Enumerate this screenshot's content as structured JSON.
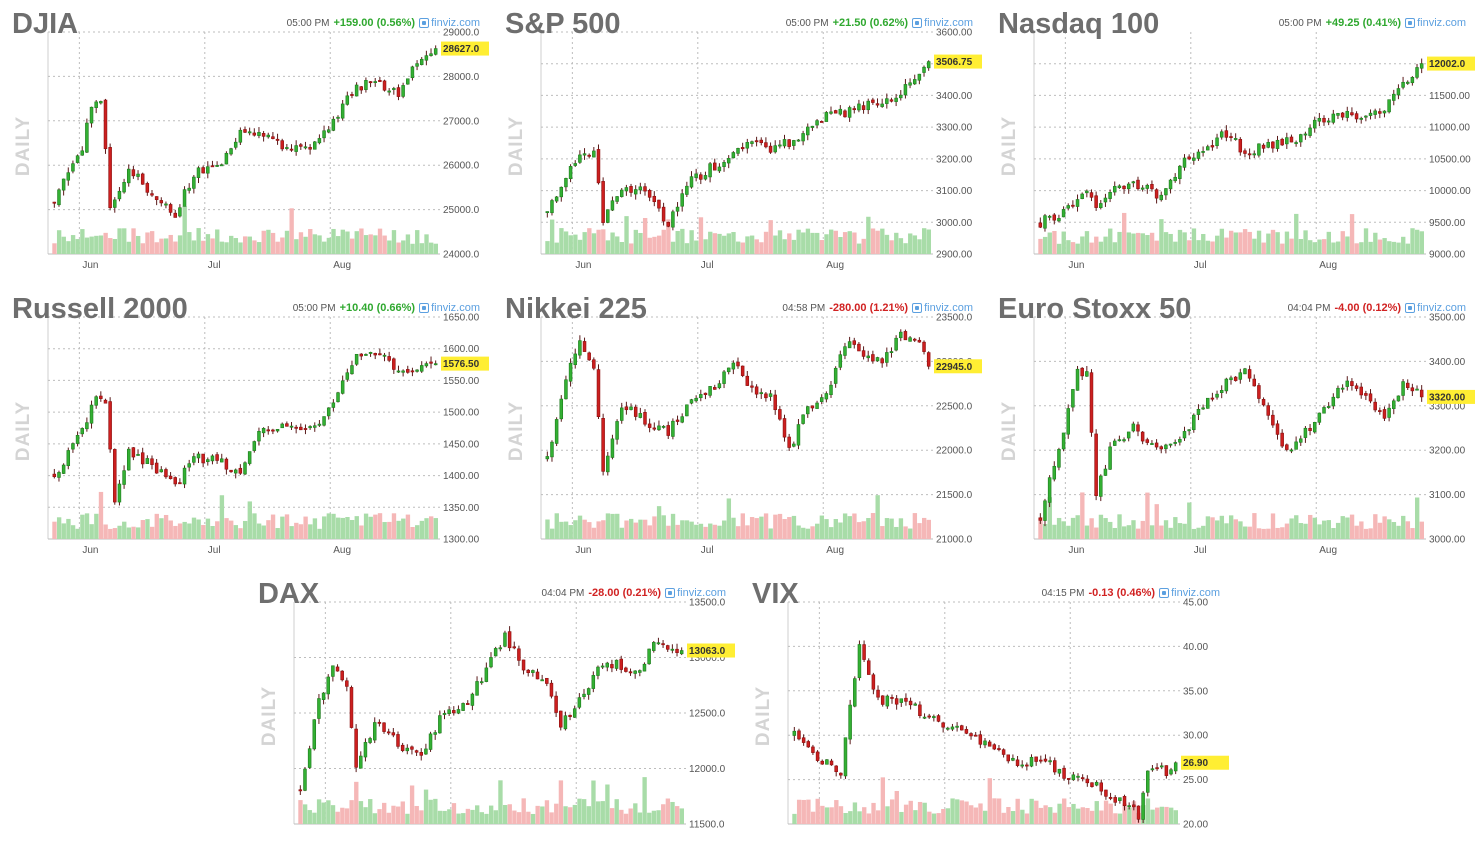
{
  "chart_data": [
    {
      "type": "candlestick",
      "title": "DJIA",
      "time": "05:00 PM",
      "change": "+159.00 (0.56%)",
      "direction": "up",
      "source": "finviz.com",
      "side_label": "DAILY",
      "last_label": "28627.0",
      "last": 28627,
      "ylim": [
        24000,
        29000
      ],
      "yticks": [
        "24000.0",
        "25000.0",
        "26000.0",
        "27000.0",
        "28000.0",
        "29000.0"
      ],
      "month_labels": [
        "Jun",
        "Jul",
        "Aug"
      ],
      "path": [
        [
          0,
          25200
        ],
        [
          6,
          26400
        ],
        [
          8,
          27300
        ],
        [
          10,
          27500
        ],
        [
          12,
          25100
        ],
        [
          16,
          25900
        ],
        [
          22,
          25300
        ],
        [
          26,
          24900
        ],
        [
          30,
          25800
        ],
        [
          36,
          26000
        ],
        [
          40,
          26700
        ],
        [
          44,
          26800
        ],
        [
          48,
          26500
        ],
        [
          55,
          26300
        ],
        [
          60,
          27000
        ],
        [
          65,
          27800
        ],
        [
          70,
          27800
        ],
        [
          74,
          27600
        ],
        [
          78,
          28300
        ],
        [
          82,
          28627
        ]
      ]
    },
    {
      "type": "candlestick",
      "title": "S&P 500",
      "time": "05:00 PM",
      "change": "+21.50 (0.62%)",
      "direction": "up",
      "source": "finviz.com",
      "side_label": "DAILY",
      "last_label": "3506.75",
      "last": 3506.75,
      "ylim": [
        2900,
        3600
      ],
      "yticks": [
        "2900.00",
        "3000.00",
        "3100.00",
        "3200.00",
        "3300.00",
        "3400.00",
        "3500.00",
        "3600.00"
      ],
      "month_labels": [
        "Jun",
        "Jul",
        "Aug"
      ],
      "path": [
        [
          0,
          3030
        ],
        [
          6,
          3200
        ],
        [
          10,
          3230
        ],
        [
          12,
          3000
        ],
        [
          16,
          3110
        ],
        [
          22,
          3090
        ],
        [
          26,
          2990
        ],
        [
          30,
          3120
        ],
        [
          36,
          3180
        ],
        [
          40,
          3220
        ],
        [
          44,
          3260
        ],
        [
          48,
          3220
        ],
        [
          55,
          3280
        ],
        [
          60,
          3340
        ],
        [
          65,
          3350
        ],
        [
          70,
          3380
        ],
        [
          74,
          3390
        ],
        [
          78,
          3440
        ],
        [
          82,
          3506.75
        ]
      ]
    },
    {
      "type": "candlestick",
      "title": "Nasdaq 100",
      "time": "05:00 PM",
      "change": "+49.25 (0.41%)",
      "direction": "up",
      "source": "finviz.com",
      "side_label": "DAILY",
      "last_label": "12002.0",
      "last": 12002,
      "ylim": [
        9000,
        12500
      ],
      "yticks": [
        "9000.00",
        "9500.00",
        "10000.00",
        "10500.00",
        "11000.00",
        "11500.00",
        "12000.00"
      ],
      "month_labels": [
        "Jun",
        "Jul",
        "Aug"
      ],
      "path": [
        [
          0,
          9500
        ],
        [
          6,
          9700
        ],
        [
          10,
          10000
        ],
        [
          12,
          9700
        ],
        [
          16,
          10000
        ],
        [
          22,
          10100
        ],
        [
          26,
          9900
        ],
        [
          30,
          10400
        ],
        [
          36,
          10700
        ],
        [
          40,
          10900
        ],
        [
          44,
          10600
        ],
        [
          48,
          10700
        ],
        [
          55,
          10800
        ],
        [
          60,
          11100
        ],
        [
          65,
          11200
        ],
        [
          70,
          11100
        ],
        [
          74,
          11300
        ],
        [
          78,
          11700
        ],
        [
          82,
          12002
        ]
      ]
    },
    {
      "type": "candlestick",
      "title": "Russell 2000",
      "time": "05:00 PM",
      "change": "+10.40 (0.66%)",
      "direction": "up",
      "source": "finviz.com",
      "side_label": "DAILY",
      "last_label": "1576.50",
      "last": 1576.5,
      "ylim": [
        1300,
        1650
      ],
      "yticks": [
        "1300.00",
        "1350.00",
        "1400.00",
        "1450.00",
        "1500.00",
        "1550.00",
        "1600.00",
        "1650.00"
      ],
      "month_labels": [
        "Jun",
        "Jul",
        "Aug"
      ],
      "path": [
        [
          0,
          1400
        ],
        [
          6,
          1470
        ],
        [
          9,
          1530
        ],
        [
          11,
          1510
        ],
        [
          13,
          1360
        ],
        [
          16,
          1440
        ],
        [
          22,
          1410
        ],
        [
          26,
          1380
        ],
        [
          30,
          1430
        ],
        [
          36,
          1420
        ],
        [
          40,
          1400
        ],
        [
          44,
          1470
        ],
        [
          48,
          1480
        ],
        [
          55,
          1470
        ],
        [
          60,
          1510
        ],
        [
          65,
          1590
        ],
        [
          70,
          1590
        ],
        [
          74,
          1570
        ],
        [
          78,
          1565
        ],
        [
          82,
          1576.5
        ]
      ]
    },
    {
      "type": "candlestick",
      "title": "Nikkei 225",
      "time": "04:58 PM",
      "change": "-280.00 (1.21%)",
      "direction": "down",
      "source": "finviz.com",
      "side_label": "DAILY",
      "last_label": "22945.0",
      "last": 22945,
      "ylim": [
        21000,
        23500
      ],
      "yticks": [
        "21000.0",
        "21500.0",
        "22000.0",
        "22500.0",
        "23000.0",
        "23500.0"
      ],
      "month_labels": [
        "Jun",
        "Jul",
        "Aug"
      ],
      "path": [
        [
          0,
          21900
        ],
        [
          4,
          22800
        ],
        [
          7,
          23200
        ],
        [
          10,
          22900
        ],
        [
          12,
          21800
        ],
        [
          16,
          22500
        ],
        [
          22,
          22300
        ],
        [
          26,
          22200
        ],
        [
          30,
          22500
        ],
        [
          36,
          22700
        ],
        [
          40,
          23000
        ],
        [
          44,
          22700
        ],
        [
          48,
          22600
        ],
        [
          52,
          22000
        ],
        [
          56,
          22500
        ],
        [
          60,
          22600
        ],
        [
          64,
          23200
        ],
        [
          68,
          23100
        ],
        [
          72,
          23000
        ],
        [
          76,
          23300
        ],
        [
          80,
          23200
        ],
        [
          82,
          22945
        ]
      ]
    },
    {
      "type": "candlestick",
      "title": "Euro Stoxx 50",
      "time": "04:04 PM",
      "change": "-4.00 (0.12%)",
      "direction": "down",
      "source": "finviz.com",
      "side_label": "DAILY",
      "last_label": "3320.00",
      "last": 3320,
      "ylim": [
        3000,
        3500
      ],
      "yticks": [
        "3000.00",
        "3100.00",
        "3200.00",
        "3300.00",
        "3400.00",
        "3500.00"
      ],
      "month_labels": [
        "Jun",
        "Jul",
        "Aug"
      ],
      "path": [
        [
          0,
          3050
        ],
        [
          5,
          3250
        ],
        [
          8,
          3380
        ],
        [
          10,
          3370
        ],
        [
          12,
          3100
        ],
        [
          15,
          3200
        ],
        [
          20,
          3250
        ],
        [
          25,
          3200
        ],
        [
          30,
          3220
        ],
        [
          35,
          3300
        ],
        [
          40,
          3350
        ],
        [
          44,
          3380
        ],
        [
          48,
          3300
        ],
        [
          53,
          3200
        ],
        [
          58,
          3250
        ],
        [
          62,
          3300
        ],
        [
          66,
          3360
        ],
        [
          70,
          3320
        ],
        [
          74,
          3280
        ],
        [
          78,
          3350
        ],
        [
          82,
          3320
        ]
      ]
    },
    {
      "type": "candlestick",
      "title": "DAX",
      "time": "04:04 PM",
      "change": "-28.00 (0.21%)",
      "direction": "down",
      "source": "finviz.com",
      "side_label": "DAILY",
      "last_label": "13063.0",
      "last": 13063,
      "ylim": [
        11500,
        13500
      ],
      "yticks": [
        "11500.0",
        "12000.0",
        "12500.0",
        "13000.0",
        "13500.0"
      ],
      "month_labels": [],
      "path": [
        [
          0,
          11800
        ],
        [
          4,
          12600
        ],
        [
          7,
          12950
        ],
        [
          10,
          12700
        ],
        [
          12,
          12000
        ],
        [
          16,
          12400
        ],
        [
          22,
          12200
        ],
        [
          26,
          12100
        ],
        [
          30,
          12450
        ],
        [
          36,
          12600
        ],
        [
          40,
          12900
        ],
        [
          44,
          13200
        ],
        [
          48,
          12900
        ],
        [
          53,
          12800
        ],
        [
          56,
          12400
        ],
        [
          60,
          12600
        ],
        [
          64,
          12900
        ],
        [
          68,
          12950
        ],
        [
          72,
          12850
        ],
        [
          76,
          13100
        ],
        [
          80,
          13100
        ],
        [
          82,
          13063
        ]
      ]
    },
    {
      "type": "candlestick",
      "title": "VIX",
      "time": "04:15 PM",
      "change": "-0.13 (0.46%)",
      "direction": "down",
      "source": "finviz.com",
      "side_label": "DAILY",
      "last_label": "26.90",
      "last": 26.9,
      "ylim": [
        20,
        45
      ],
      "yticks": [
        "20.00",
        "25.00",
        "30.00",
        "35.00",
        "40.00",
        "45.00"
      ],
      "month_labels": [],
      "path": [
        [
          0,
          30
        ],
        [
          6,
          27
        ],
        [
          10,
          26
        ],
        [
          12,
          33
        ],
        [
          14,
          40
        ],
        [
          18,
          34
        ],
        [
          22,
          34
        ],
        [
          26,
          33
        ],
        [
          32,
          31
        ],
        [
          38,
          30
        ],
        [
          44,
          28
        ],
        [
          48,
          27
        ],
        [
          54,
          27
        ],
        [
          60,
          25
        ],
        [
          66,
          24
        ],
        [
          72,
          22
        ],
        [
          74,
          21
        ],
        [
          76,
          26
        ],
        [
          80,
          26
        ],
        [
          82,
          26.9
        ]
      ]
    }
  ]
}
